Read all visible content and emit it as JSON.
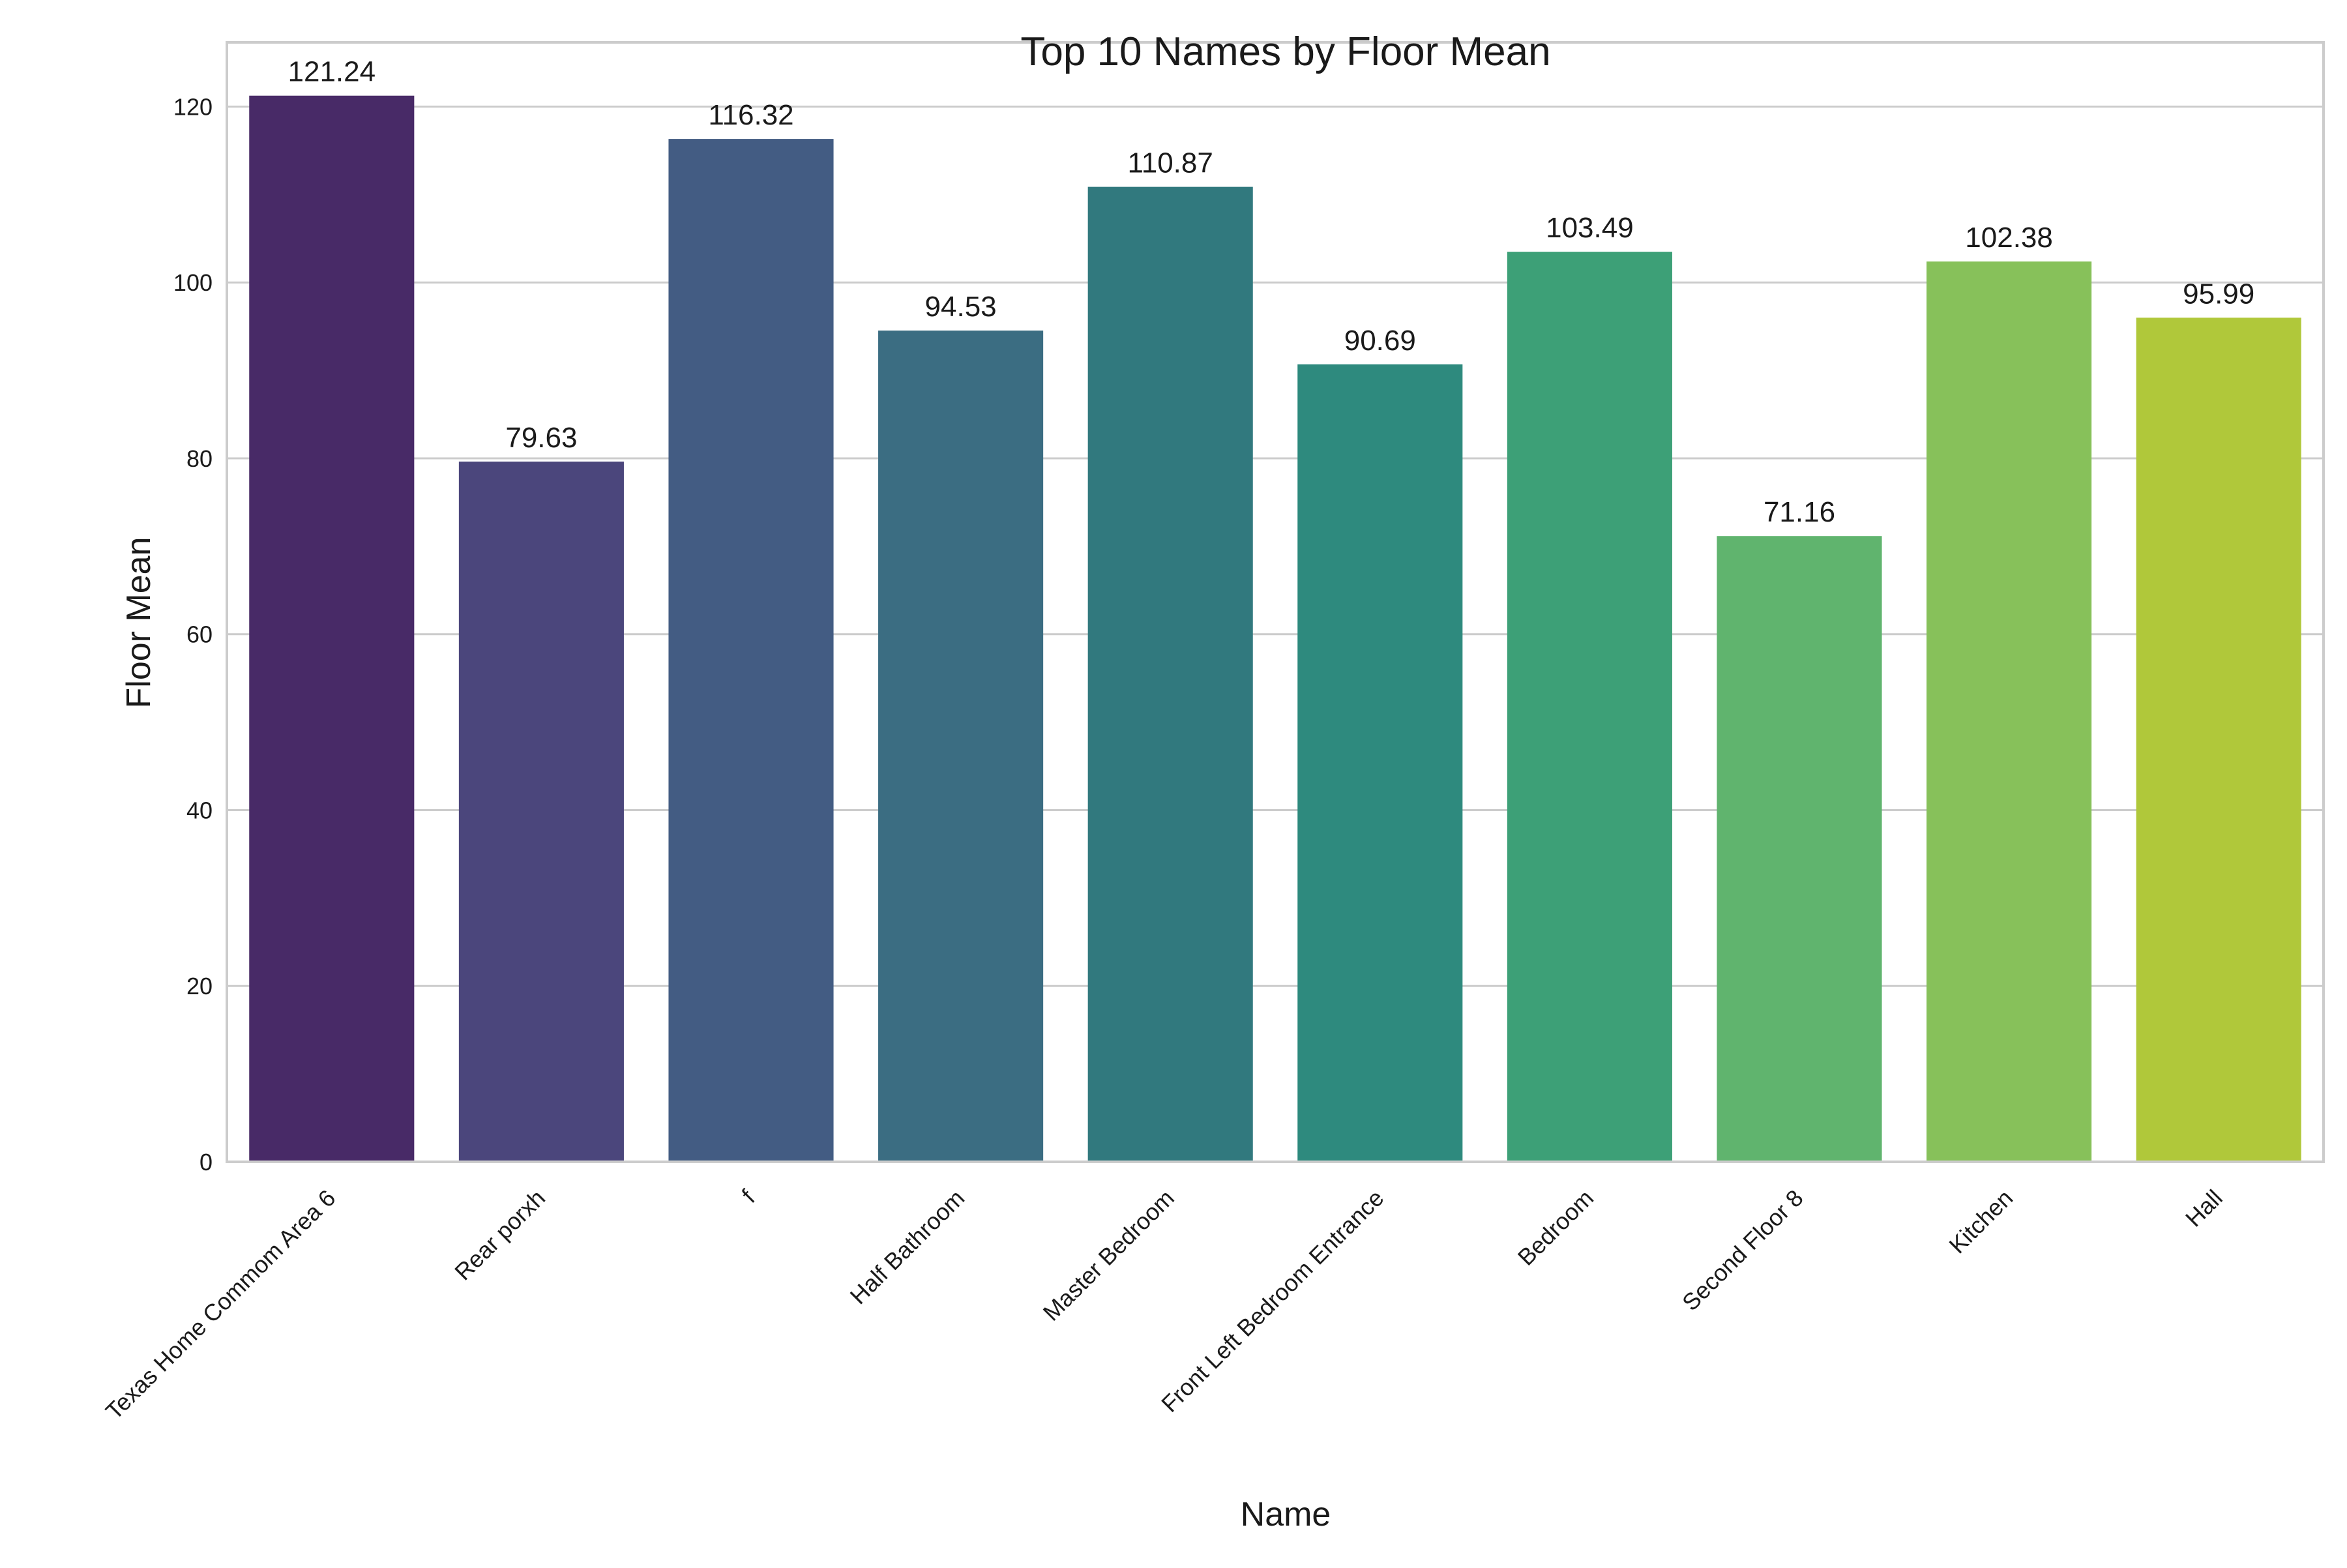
{
  "chart_data": {
    "type": "bar",
    "title": "Top 10 Names by Floor Mean",
    "xlabel": "Name",
    "ylabel": "Floor Mean",
    "categories": [
      "Texas Home Commom Area 6",
      "Rear porxh",
      "f",
      "Half Bathroom",
      "Master Bedroom",
      "Front Left Bedroom Entrance",
      "Bedroom",
      "Second Floor 8",
      "Kitchen",
      "Hall"
    ],
    "values": [
      121.24,
      79.63,
      116.32,
      94.53,
      110.87,
      90.69,
      103.49,
      71.16,
      102.38,
      95.99
    ],
    "value_labels": [
      "121.24",
      "79.63",
      "116.32",
      "94.53",
      "110.87",
      "90.69",
      "103.49",
      "71.16",
      "102.38",
      "95.99"
    ],
    "colors": [
      "#482a67",
      "#4b467c",
      "#435c83",
      "#3b6d82",
      "#31797e",
      "#2e8a7e",
      "#3da077",
      "#60b46e",
      "#87c15a",
      "#b0c83a"
    ],
    "yticks": [
      0,
      20,
      40,
      60,
      80,
      100,
      120
    ],
    "ylim": [
      0,
      127.3
    ],
    "grid": true,
    "legend": "none"
  }
}
